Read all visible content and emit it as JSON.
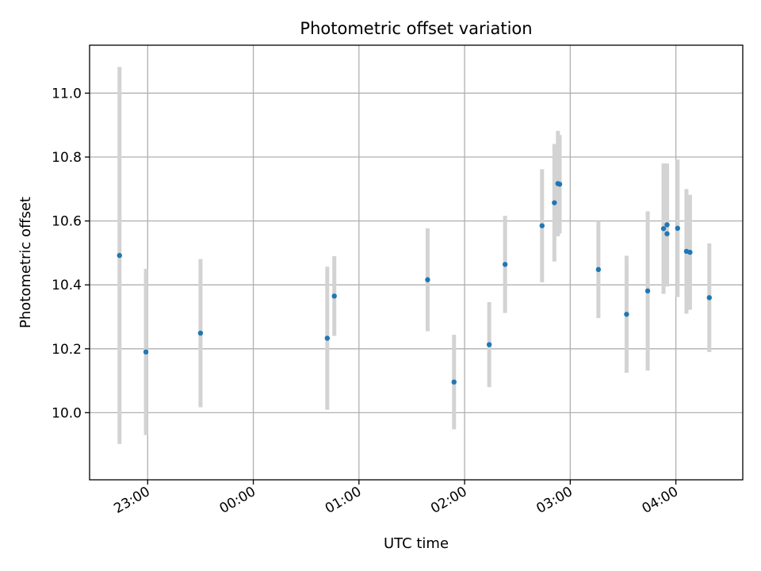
{
  "chart_data": {
    "type": "scatter",
    "title": "Photometric offset variation",
    "xlabel": "UTC time",
    "ylabel": "Photometric offset",
    "grid": true,
    "xlim": [
      "22:27",
      "04:38"
    ],
    "ylim": [
      9.79,
      11.15
    ],
    "x_ticks": [
      "23:00",
      "00:00",
      "01:00",
      "02:00",
      "03:00",
      "04:00"
    ],
    "y_ticks": [
      10.0,
      10.2,
      10.4,
      10.6,
      10.8,
      11.0
    ],
    "y_tick_labels": [
      "10.0",
      "10.2",
      "10.4",
      "10.6",
      "10.8",
      "11.0"
    ],
    "colors": {
      "point": "#1f77b4",
      "errorbar": "#d3d3d3"
    },
    "points": [
      {
        "time": "22:44",
        "y": 10.492,
        "err": 0.59
      },
      {
        "time": "22:59",
        "y": 10.19,
        "err": 0.26
      },
      {
        "time": "23:30",
        "y": 10.249,
        "err": 0.232
      },
      {
        "time": "00:42",
        "y": 10.233,
        "err": 0.224
      },
      {
        "time": "00:46",
        "y": 10.365,
        "err": 0.125
      },
      {
        "time": "01:39",
        "y": 10.416,
        "err": 0.161
      },
      {
        "time": "01:54",
        "y": 10.096,
        "err": 0.148
      },
      {
        "time": "02:14",
        "y": 10.213,
        "err": 0.133
      },
      {
        "time": "02:23",
        "y": 10.464,
        "err": 0.152
      },
      {
        "time": "02:44",
        "y": 10.585,
        "err": 0.177
      },
      {
        "time": "02:51",
        "y": 10.657,
        "err": 0.184
      },
      {
        "time": "02:53",
        "y": 10.717,
        "err": 0.165
      },
      {
        "time": "02:54",
        "y": 10.715,
        "err": 0.154
      },
      {
        "time": "03:16",
        "y": 10.448,
        "err": 0.152
      },
      {
        "time": "03:32",
        "y": 10.308,
        "err": 0.183
      },
      {
        "time": "03:44",
        "y": 10.381,
        "err": 0.249
      },
      {
        "time": "03:53",
        "y": 10.576,
        "err": 0.204
      },
      {
        "time": "03:55",
        "y": 10.588,
        "err": 0.192
      },
      {
        "time": "03:55",
        "y": 10.56,
        "err": 0.165
      },
      {
        "time": "04:01",
        "y": 10.577,
        "err": 0.215
      },
      {
        "time": "04:06",
        "y": 10.505,
        "err": 0.195
      },
      {
        "time": "04:08",
        "y": 10.502,
        "err": 0.18
      },
      {
        "time": "04:19",
        "y": 10.36,
        "err": 0.17
      }
    ]
  }
}
